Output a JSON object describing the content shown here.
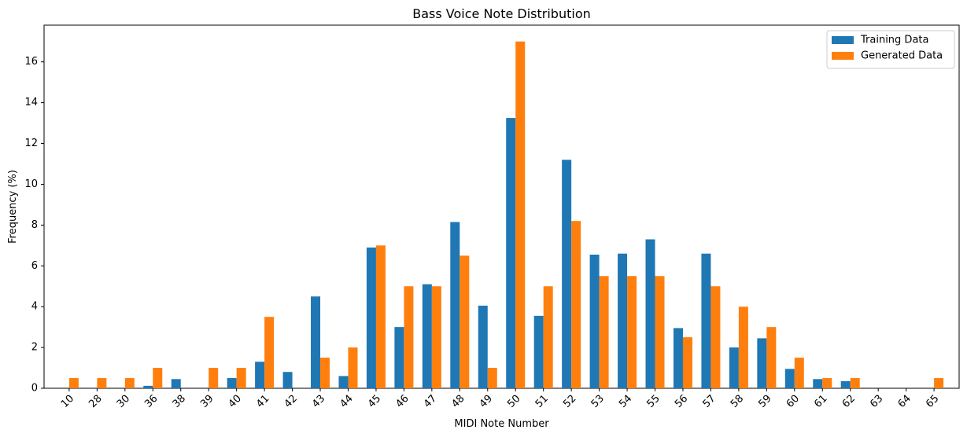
{
  "chart_data": {
    "type": "bar",
    "title": "Bass Voice Note Distribution",
    "xlabel": "MIDI Note Number",
    "ylabel": "Frequency (%)",
    "ylim": [
      0,
      17.8
    ],
    "yticks": [
      0,
      2,
      4,
      6,
      8,
      10,
      12,
      14,
      16
    ],
    "legend_position": "top-right",
    "grid": false,
    "categories": [
      "10",
      "28",
      "30",
      "36",
      "38",
      "39",
      "40",
      "41",
      "42",
      "43",
      "44",
      "45",
      "46",
      "47",
      "48",
      "49",
      "50",
      "51",
      "52",
      "53",
      "54",
      "55",
      "56",
      "57",
      "58",
      "59",
      "60",
      "61",
      "62",
      "63",
      "64",
      "65"
    ],
    "series": [
      {
        "name": "Training Data",
        "color": "#1f77b4",
        "values": [
          0,
          0,
          0,
          0.12,
          0.45,
          0,
          0.5,
          1.3,
          0.8,
          4.5,
          0.6,
          6.9,
          3.0,
          5.1,
          8.15,
          4.05,
          13.25,
          3.55,
          11.2,
          6.55,
          6.6,
          7.3,
          2.95,
          6.6,
          2.0,
          2.45,
          0.95,
          0.45,
          0.35,
          0,
          0,
          0
        ]
      },
      {
        "name": "Generated Data",
        "color": "#ff7f0e",
        "values": [
          0.5,
          0.5,
          0.5,
          1.0,
          0,
          1.0,
          1.0,
          3.5,
          0,
          1.5,
          2.0,
          7.0,
          5.0,
          5.0,
          6.5,
          1.0,
          17.0,
          5.0,
          8.2,
          5.5,
          5.5,
          5.5,
          2.5,
          5.0,
          4.0,
          3.0,
          1.5,
          0.5,
          0.5,
          0,
          0,
          0.5
        ]
      }
    ]
  }
}
